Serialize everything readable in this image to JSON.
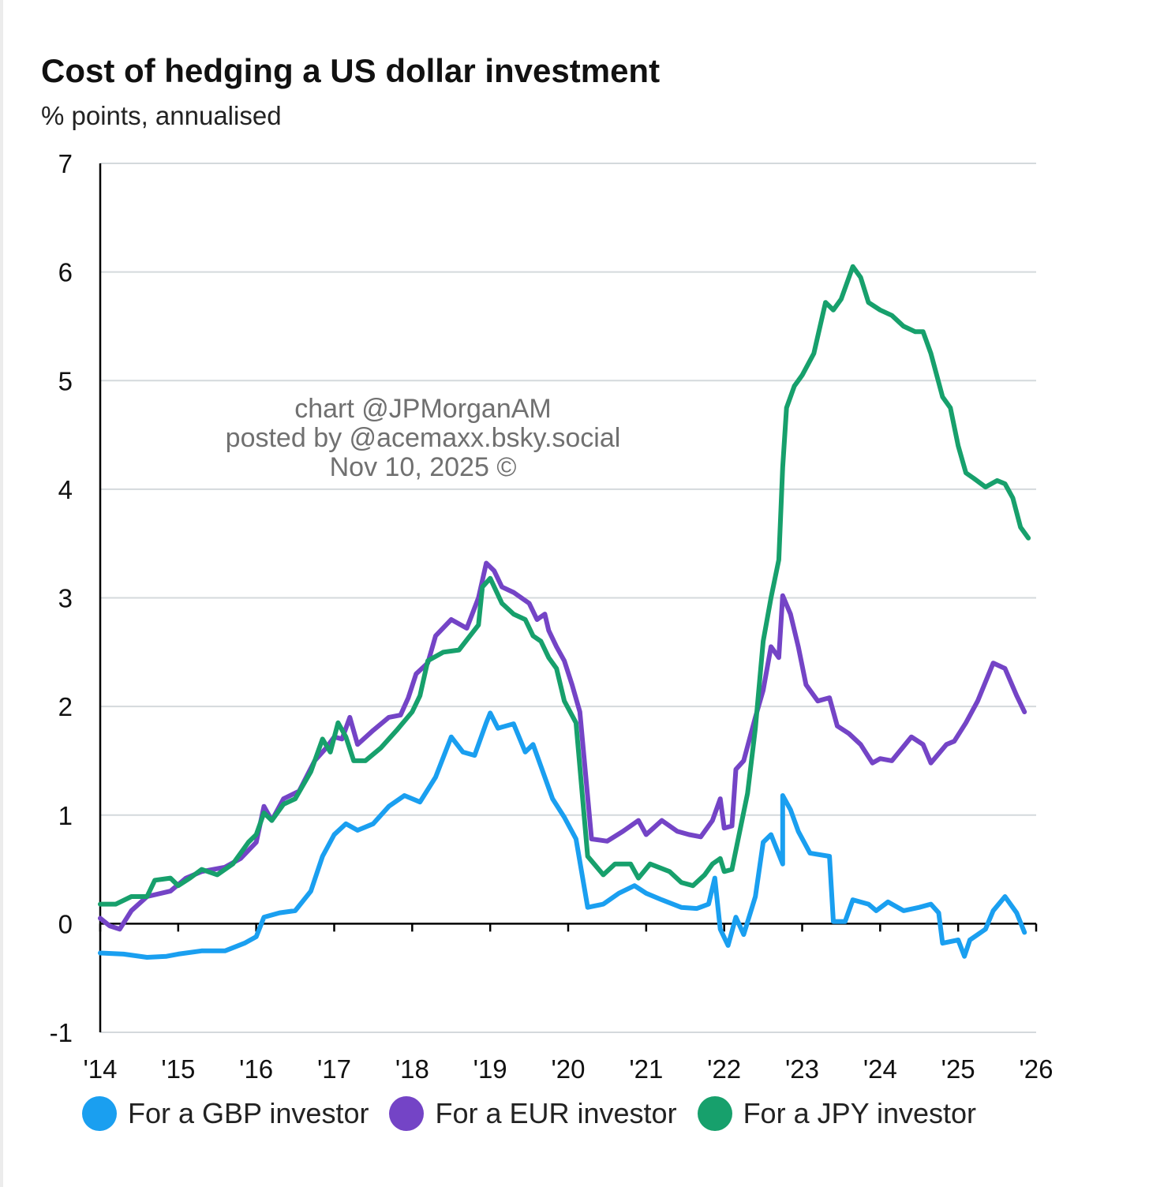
{
  "chart_data": {
    "type": "line",
    "title": "Cost of hedging a US dollar investment",
    "subtitle": "% points, annualised",
    "xlabel": "",
    "ylabel": "",
    "xlim": [
      2014,
      2026
    ],
    "ylim": [
      -1,
      7
    ],
    "x_ticks": [
      "'14",
      "'15",
      "'16",
      "'17",
      "'18",
      "'19",
      "'20",
      "'21",
      "'22",
      "'23",
      "'24",
      "'25",
      "'26"
    ],
    "y_ticks": [
      "-1",
      "0",
      "1",
      "2",
      "3",
      "4",
      "5",
      "6",
      "7"
    ],
    "grid": "horizontal",
    "legend_position": "bottom",
    "annotations": [
      "chart @JPMorganAM",
      "posted by @acemaxx.bsky.social",
      "Nov 10, 2025 ©"
    ],
    "series": [
      {
        "name": "For a GBP investor",
        "color": "#1a9ff0",
        "points": [
          [
            2014.0,
            -0.27
          ],
          [
            2014.3,
            -0.28
          ],
          [
            2014.6,
            -0.31
          ],
          [
            2014.85,
            -0.3
          ],
          [
            2015.0,
            -0.28
          ],
          [
            2015.3,
            -0.25
          ],
          [
            2015.6,
            -0.25
          ],
          [
            2015.85,
            -0.18
          ],
          [
            2016.0,
            -0.12
          ],
          [
            2016.1,
            0.06
          ],
          [
            2016.3,
            0.1
          ],
          [
            2016.5,
            0.12
          ],
          [
            2016.7,
            0.3
          ],
          [
            2016.85,
            0.62
          ],
          [
            2017.0,
            0.82
          ],
          [
            2017.15,
            0.92
          ],
          [
            2017.3,
            0.86
          ],
          [
            2017.5,
            0.92
          ],
          [
            2017.7,
            1.08
          ],
          [
            2017.9,
            1.18
          ],
          [
            2018.1,
            1.12
          ],
          [
            2018.3,
            1.35
          ],
          [
            2018.5,
            1.72
          ],
          [
            2018.65,
            1.58
          ],
          [
            2018.8,
            1.55
          ],
          [
            2018.95,
            1.85
          ],
          [
            2019.0,
            1.94
          ],
          [
            2019.1,
            1.8
          ],
          [
            2019.3,
            1.84
          ],
          [
            2019.45,
            1.58
          ],
          [
            2019.55,
            1.65
          ],
          [
            2019.65,
            1.45
          ],
          [
            2019.8,
            1.15
          ],
          [
            2019.95,
            0.98
          ],
          [
            2020.1,
            0.78
          ],
          [
            2020.25,
            0.15
          ],
          [
            2020.45,
            0.18
          ],
          [
            2020.65,
            0.28
          ],
          [
            2020.85,
            0.35
          ],
          [
            2021.0,
            0.28
          ],
          [
            2021.2,
            0.22
          ],
          [
            2021.45,
            0.15
          ],
          [
            2021.65,
            0.14
          ],
          [
            2021.8,
            0.18
          ],
          [
            2021.88,
            0.42
          ],
          [
            2021.95,
            -0.05
          ],
          [
            2022.05,
            -0.2
          ],
          [
            2022.15,
            0.06
          ],
          [
            2022.25,
            -0.1
          ],
          [
            2022.4,
            0.25
          ],
          [
            2022.5,
            0.75
          ],
          [
            2022.6,
            0.82
          ],
          [
            2022.75,
            0.55
          ],
          [
            2022.75,
            1.18
          ],
          [
            2022.85,
            1.05
          ],
          [
            2022.95,
            0.85
          ],
          [
            2023.1,
            0.65
          ],
          [
            2023.35,
            0.62
          ],
          [
            2023.4,
            0.02
          ],
          [
            2023.55,
            0.02
          ],
          [
            2023.65,
            0.22
          ],
          [
            2023.85,
            0.18
          ],
          [
            2023.95,
            0.12
          ],
          [
            2024.1,
            0.2
          ],
          [
            2024.3,
            0.12
          ],
          [
            2024.5,
            0.15
          ],
          [
            2024.65,
            0.18
          ],
          [
            2024.75,
            0.1
          ],
          [
            2024.8,
            -0.18
          ],
          [
            2025.0,
            -0.15
          ],
          [
            2025.08,
            -0.3
          ],
          [
            2025.15,
            -0.15
          ],
          [
            2025.35,
            -0.05
          ],
          [
            2025.45,
            0.12
          ],
          [
            2025.6,
            0.25
          ],
          [
            2025.75,
            0.1
          ],
          [
            2025.85,
            -0.08
          ]
        ]
      },
      {
        "name": "For a EUR investor",
        "color": "#7444c6",
        "points": [
          [
            2014.0,
            0.05
          ],
          [
            2014.12,
            -0.02
          ],
          [
            2014.25,
            -0.05
          ],
          [
            2014.4,
            0.12
          ],
          [
            2014.6,
            0.25
          ],
          [
            2014.9,
            0.3
          ],
          [
            2015.1,
            0.42
          ],
          [
            2015.3,
            0.48
          ],
          [
            2015.6,
            0.52
          ],
          [
            2015.8,
            0.6
          ],
          [
            2016.0,
            0.75
          ],
          [
            2016.1,
            1.08
          ],
          [
            2016.2,
            0.95
          ],
          [
            2016.35,
            1.15
          ],
          [
            2016.55,
            1.22
          ],
          [
            2016.75,
            1.5
          ],
          [
            2016.9,
            1.62
          ],
          [
            2017.0,
            1.72
          ],
          [
            2017.1,
            1.7
          ],
          [
            2017.2,
            1.9
          ],
          [
            2017.3,
            1.65
          ],
          [
            2017.5,
            1.78
          ],
          [
            2017.7,
            1.9
          ],
          [
            2017.85,
            1.92
          ],
          [
            2017.95,
            2.08
          ],
          [
            2018.05,
            2.3
          ],
          [
            2018.2,
            2.4
          ],
          [
            2018.3,
            2.65
          ],
          [
            2018.5,
            2.8
          ],
          [
            2018.7,
            2.72
          ],
          [
            2018.85,
            3.0
          ],
          [
            2018.95,
            3.32
          ],
          [
            2019.05,
            3.25
          ],
          [
            2019.15,
            3.1
          ],
          [
            2019.3,
            3.05
          ],
          [
            2019.5,
            2.95
          ],
          [
            2019.6,
            2.8
          ],
          [
            2019.7,
            2.85
          ],
          [
            2019.75,
            2.7
          ],
          [
            2019.85,
            2.55
          ],
          [
            2019.95,
            2.42
          ],
          [
            2020.05,
            2.2
          ],
          [
            2020.15,
            1.95
          ],
          [
            2020.3,
            0.78
          ],
          [
            2020.5,
            0.76
          ],
          [
            2020.7,
            0.85
          ],
          [
            2020.9,
            0.95
          ],
          [
            2021.0,
            0.82
          ],
          [
            2021.2,
            0.95
          ],
          [
            2021.4,
            0.85
          ],
          [
            2021.55,
            0.82
          ],
          [
            2021.7,
            0.8
          ],
          [
            2021.85,
            0.95
          ],
          [
            2021.95,
            1.15
          ],
          [
            2022.0,
            0.88
          ],
          [
            2022.1,
            0.9
          ],
          [
            2022.15,
            1.42
          ],
          [
            2022.25,
            1.5
          ],
          [
            2022.4,
            1.9
          ],
          [
            2022.5,
            2.15
          ],
          [
            2022.6,
            2.55
          ],
          [
            2022.7,
            2.45
          ],
          [
            2022.75,
            3.02
          ],
          [
            2022.85,
            2.85
          ],
          [
            2022.95,
            2.55
          ],
          [
            2023.05,
            2.2
          ],
          [
            2023.2,
            2.05
          ],
          [
            2023.35,
            2.08
          ],
          [
            2023.45,
            1.82
          ],
          [
            2023.6,
            1.75
          ],
          [
            2023.75,
            1.65
          ],
          [
            2023.9,
            1.48
          ],
          [
            2024.0,
            1.52
          ],
          [
            2024.15,
            1.5
          ],
          [
            2024.4,
            1.72
          ],
          [
            2024.55,
            1.65
          ],
          [
            2024.65,
            1.48
          ],
          [
            2024.85,
            1.65
          ],
          [
            2024.95,
            1.68
          ],
          [
            2025.1,
            1.85
          ],
          [
            2025.25,
            2.05
          ],
          [
            2025.45,
            2.4
          ],
          [
            2025.6,
            2.35
          ],
          [
            2025.75,
            2.1
          ],
          [
            2025.85,
            1.95
          ]
        ]
      },
      {
        "name": "For a JPY investor",
        "color": "#17a06c",
        "points": [
          [
            2014.0,
            0.18
          ],
          [
            2014.2,
            0.18
          ],
          [
            2014.4,
            0.25
          ],
          [
            2014.6,
            0.25
          ],
          [
            2014.7,
            0.4
          ],
          [
            2014.9,
            0.42
          ],
          [
            2015.0,
            0.35
          ],
          [
            2015.15,
            0.42
          ],
          [
            2015.3,
            0.5
          ],
          [
            2015.5,
            0.45
          ],
          [
            2015.7,
            0.55
          ],
          [
            2015.9,
            0.75
          ],
          [
            2016.0,
            0.82
          ],
          [
            2016.1,
            1.02
          ],
          [
            2016.2,
            0.95
          ],
          [
            2016.35,
            1.1
          ],
          [
            2016.5,
            1.15
          ],
          [
            2016.7,
            1.4
          ],
          [
            2016.85,
            1.7
          ],
          [
            2016.95,
            1.58
          ],
          [
            2017.05,
            1.85
          ],
          [
            2017.15,
            1.72
          ],
          [
            2017.25,
            1.5
          ],
          [
            2017.4,
            1.5
          ],
          [
            2017.6,
            1.62
          ],
          [
            2017.8,
            1.78
          ],
          [
            2018.0,
            1.95
          ],
          [
            2018.1,
            2.1
          ],
          [
            2018.2,
            2.42
          ],
          [
            2018.4,
            2.5
          ],
          [
            2018.6,
            2.52
          ],
          [
            2018.85,
            2.75
          ],
          [
            2018.9,
            3.1
          ],
          [
            2019.0,
            3.18
          ],
          [
            2019.15,
            2.95
          ],
          [
            2019.3,
            2.85
          ],
          [
            2019.45,
            2.8
          ],
          [
            2019.55,
            2.65
          ],
          [
            2019.65,
            2.6
          ],
          [
            2019.75,
            2.45
          ],
          [
            2019.85,
            2.35
          ],
          [
            2019.95,
            2.05
          ],
          [
            2020.1,
            1.85
          ],
          [
            2020.25,
            0.62
          ],
          [
            2020.45,
            0.45
          ],
          [
            2020.6,
            0.55
          ],
          [
            2020.8,
            0.55
          ],
          [
            2020.9,
            0.42
          ],
          [
            2021.05,
            0.55
          ],
          [
            2021.3,
            0.48
          ],
          [
            2021.45,
            0.38
          ],
          [
            2021.6,
            0.35
          ],
          [
            2021.75,
            0.45
          ],
          [
            2021.85,
            0.55
          ],
          [
            2021.95,
            0.6
          ],
          [
            2022.0,
            0.48
          ],
          [
            2022.1,
            0.5
          ],
          [
            2022.2,
            0.85
          ],
          [
            2022.3,
            1.2
          ],
          [
            2022.4,
            1.8
          ],
          [
            2022.5,
            2.6
          ],
          [
            2022.6,
            3.0
          ],
          [
            2022.7,
            3.35
          ],
          [
            2022.75,
            4.2
          ],
          [
            2022.8,
            4.75
          ],
          [
            2022.9,
            4.95
          ],
          [
            2023.0,
            5.05
          ],
          [
            2023.15,
            5.25
          ],
          [
            2023.3,
            5.72
          ],
          [
            2023.4,
            5.65
          ],
          [
            2023.5,
            5.75
          ],
          [
            2023.65,
            6.05
          ],
          [
            2023.75,
            5.95
          ],
          [
            2023.85,
            5.72
          ],
          [
            2024.0,
            5.65
          ],
          [
            2024.15,
            5.6
          ],
          [
            2024.3,
            5.5
          ],
          [
            2024.45,
            5.45
          ],
          [
            2024.55,
            5.45
          ],
          [
            2024.65,
            5.25
          ],
          [
            2024.8,
            4.85
          ],
          [
            2024.9,
            4.75
          ],
          [
            2025.0,
            4.4
          ],
          [
            2025.1,
            4.15
          ],
          [
            2025.2,
            4.1
          ],
          [
            2025.35,
            4.02
          ],
          [
            2025.5,
            4.08
          ],
          [
            2025.6,
            4.05
          ],
          [
            2025.7,
            3.92
          ],
          [
            2025.8,
            3.65
          ],
          [
            2025.9,
            3.55
          ]
        ]
      }
    ]
  }
}
